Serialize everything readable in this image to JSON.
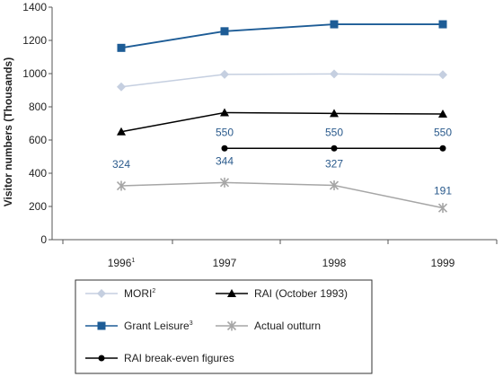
{
  "chart_data": {
    "type": "line",
    "ylabel": "Visitor numbers (Thousands)",
    "ylim": [
      0,
      1400
    ],
    "yticks": [
      "0",
      "200",
      "400",
      "600",
      "800",
      "1000",
      "1200",
      "1400"
    ],
    "categories": [
      {
        "label": "1996",
        "sup": "1"
      },
      {
        "label": "1997",
        "sup": ""
      },
      {
        "label": "1998",
        "sup": ""
      },
      {
        "label": "1999",
        "sup": ""
      }
    ],
    "series": [
      {
        "name": "MORI",
        "sup": "2",
        "marker": "diamond",
        "color": "#c5cfe0",
        "values": [
          920,
          995,
          998,
          993
        ]
      },
      {
        "name": "RAI (October 1993)",
        "sup": "",
        "marker": "triangle",
        "color": "#000000",
        "values": [
          650,
          765,
          760,
          757
        ]
      },
      {
        "name": "Grant Leisure",
        "sup": "3",
        "marker": "square",
        "color": "#1d5c96",
        "values": [
          1155,
          1255,
          1297,
          1297
        ]
      },
      {
        "name": "Actual outturn",
        "sup": "",
        "marker": "star",
        "color": "#a6a6a6",
        "values": [
          324,
          344,
          327,
          191
        ],
        "labels": [
          "324",
          "344",
          "327",
          "191"
        ]
      },
      {
        "name": "RAI break-even figures",
        "sup": "",
        "marker": "circle",
        "color": "#000000",
        "values": [
          null,
          550,
          550,
          550
        ],
        "labels": [
          "",
          "550",
          "550",
          "550"
        ]
      }
    ],
    "legend": "bottom"
  }
}
